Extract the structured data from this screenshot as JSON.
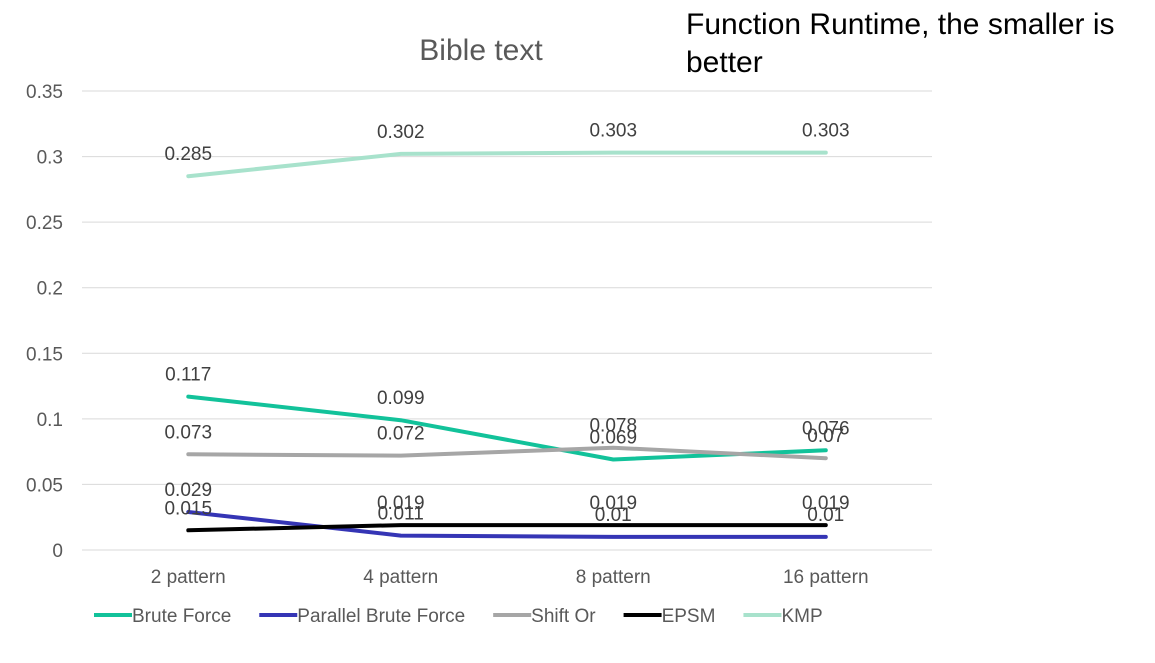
{
  "slide_title": "Function Runtime, the smaller is better",
  "chart_data": {
    "type": "line",
    "title": "Bible text",
    "xlabel": "",
    "ylabel": "",
    "categories": [
      "2 pattern",
      "4 pattern",
      "8 pattern",
      "16 pattern"
    ],
    "ylim": [
      0,
      0.35
    ],
    "yticks": [
      "0",
      "0.05",
      "0.1",
      "0.15",
      "0.2",
      "0.25",
      "0.3",
      "0.35"
    ],
    "grid": true,
    "legend_position": "bottom",
    "series": [
      {
        "name": "Brute Force",
        "color": "#12C29A",
        "values": [
          0.117,
          0.099,
          0.069,
          0.076
        ],
        "labels": [
          "0.117",
          "0.099",
          "0.069",
          "0.076"
        ]
      },
      {
        "name": "Parallel Brute Force",
        "color": "#3535B5",
        "values": [
          0.029,
          0.011,
          0.01,
          0.01
        ],
        "labels": [
          "0.029",
          "0.011",
          "0.01",
          "0.01"
        ]
      },
      {
        "name": "Shift Or",
        "color": "#A6A6A6",
        "values": [
          0.073,
          0.072,
          0.078,
          0.07
        ],
        "labels": [
          "0.073",
          "0.072",
          "0.078",
          "0.07"
        ]
      },
      {
        "name": "EPSM",
        "color": "#000000",
        "values": [
          0.015,
          0.019,
          0.019,
          0.019
        ],
        "labels": [
          "0.015",
          "0.019",
          "0.019",
          "0.019"
        ]
      },
      {
        "name": "KMP",
        "color": "#A8E2CC",
        "values": [
          0.285,
          0.302,
          0.303,
          0.303
        ],
        "labels": [
          "0.285",
          "0.302",
          "0.303",
          "0.303"
        ]
      }
    ]
  }
}
